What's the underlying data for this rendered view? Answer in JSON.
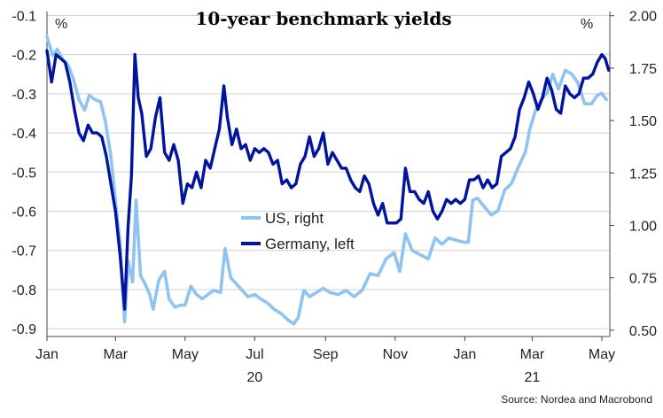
{
  "chart_data": {
    "type": "line",
    "title": "10-year benchmark yields",
    "left_unit": "%",
    "right_unit": "%",
    "source": "Source: Nordea and Macrobond",
    "x_range": [
      "2020-01-01",
      "2021-05-08"
    ],
    "x_ticks": [
      {
        "date": "2020-01-01",
        "label": "Jan"
      },
      {
        "date": "2020-03-01",
        "label": "Mar"
      },
      {
        "date": "2020-05-01",
        "label": "May"
      },
      {
        "date": "2020-07-01",
        "label": "Jul"
      },
      {
        "date": "2020-09-01",
        "label": "Sep"
      },
      {
        "date": "2020-11-01",
        "label": "Nov"
      },
      {
        "date": "2021-01-01",
        "label": "Jan"
      },
      {
        "date": "2021-03-01",
        "label": "Mar"
      },
      {
        "date": "2021-05-01",
        "label": "May"
      }
    ],
    "year_labels": [
      {
        "date": "2020-07-01",
        "label": "20"
      },
      {
        "date": "2021-03-01",
        "label": "21"
      }
    ],
    "left_axis": {
      "ylim": [
        -0.92,
        -0.09
      ],
      "ticks": [
        -0.1,
        -0.2,
        -0.3,
        -0.4,
        -0.5,
        -0.6,
        -0.7,
        -0.8,
        -0.9
      ],
      "tick_labels": [
        "-0.1",
        "-0.2",
        "-0.3",
        "-0.4",
        "-0.5",
        "-0.6",
        "-0.7",
        "-0.8",
        "-0.9"
      ]
    },
    "right_axis": {
      "ylim": [
        0.47,
        2.02
      ],
      "ticks": [
        2.0,
        1.75,
        1.5,
        1.25,
        1.0,
        0.75,
        0.5
      ],
      "tick_labels": [
        "2.00",
        "1.75",
        "1.50",
        "1.25",
        "1.00",
        "0.75",
        "0.50"
      ]
    },
    "grid": true,
    "legend_position": "center",
    "series": [
      {
        "name": "US, right",
        "axis": "right",
        "color": "#8fc3f2",
        "points": [
          [
            "2020-01-01",
            1.9
          ],
          [
            "2020-01-06",
            1.81
          ],
          [
            "2020-01-10",
            1.84
          ],
          [
            "2020-01-15",
            1.79
          ],
          [
            "2020-01-20",
            1.76
          ],
          [
            "2020-01-24",
            1.7
          ],
          [
            "2020-01-29",
            1.6
          ],
          [
            "2020-02-03",
            1.55
          ],
          [
            "2020-02-07",
            1.62
          ],
          [
            "2020-02-12",
            1.6
          ],
          [
            "2020-02-17",
            1.59
          ],
          [
            "2020-02-21",
            1.5
          ],
          [
            "2020-02-26",
            1.33
          ],
          [
            "2020-03-02",
            1.06
          ],
          [
            "2020-03-05",
            0.92
          ],
          [
            "2020-03-09",
            0.54
          ],
          [
            "2020-03-12",
            0.83
          ],
          [
            "2020-03-16",
            0.73
          ],
          [
            "2020-03-19",
            1.12
          ],
          [
            "2020-03-23",
            0.76
          ],
          [
            "2020-03-27",
            0.72
          ],
          [
            "2020-03-31",
            0.67
          ],
          [
            "2020-04-03",
            0.6
          ],
          [
            "2020-04-08",
            0.74
          ],
          [
            "2020-04-13",
            0.78
          ],
          [
            "2020-04-17",
            0.65
          ],
          [
            "2020-04-22",
            0.61
          ],
          [
            "2020-04-27",
            0.62
          ],
          [
            "2020-05-01",
            0.62
          ],
          [
            "2020-05-06",
            0.71
          ],
          [
            "2020-05-11",
            0.67
          ],
          [
            "2020-05-16",
            0.65
          ],
          [
            "2020-05-21",
            0.67
          ],
          [
            "2020-05-26",
            0.69
          ],
          [
            "2020-06-01",
            0.68
          ],
          [
            "2020-06-05",
            0.89
          ],
          [
            "2020-06-10",
            0.75
          ],
          [
            "2020-06-15",
            0.72
          ],
          [
            "2020-06-20",
            0.69
          ],
          [
            "2020-06-25",
            0.66
          ],
          [
            "2020-07-01",
            0.67
          ],
          [
            "2020-07-06",
            0.65
          ],
          [
            "2020-07-12",
            0.63
          ],
          [
            "2020-07-18",
            0.6
          ],
          [
            "2020-07-24",
            0.58
          ],
          [
            "2020-07-30",
            0.55
          ],
          [
            "2020-08-04",
            0.53
          ],
          [
            "2020-08-08",
            0.56
          ],
          [
            "2020-08-13",
            0.69
          ],
          [
            "2020-08-18",
            0.66
          ],
          [
            "2020-08-24",
            0.68
          ],
          [
            "2020-08-30",
            0.7
          ],
          [
            "2020-09-05",
            0.68
          ],
          [
            "2020-09-12",
            0.67
          ],
          [
            "2020-09-19",
            0.69
          ],
          [
            "2020-09-26",
            0.66
          ],
          [
            "2020-10-03",
            0.69
          ],
          [
            "2020-10-10",
            0.77
          ],
          [
            "2020-10-17",
            0.76
          ],
          [
            "2020-10-24",
            0.84
          ],
          [
            "2020-10-31",
            0.87
          ],
          [
            "2020-11-05",
            0.78
          ],
          [
            "2020-11-10",
            0.96
          ],
          [
            "2020-11-16",
            0.88
          ],
          [
            "2020-11-23",
            0.86
          ],
          [
            "2020-11-30",
            0.84
          ],
          [
            "2020-12-06",
            0.94
          ],
          [
            "2020-12-12",
            0.91
          ],
          [
            "2020-12-18",
            0.94
          ],
          [
            "2020-12-24",
            0.93
          ],
          [
            "2020-12-31",
            0.92
          ],
          [
            "2021-01-04",
            0.92
          ],
          [
            "2021-01-08",
            1.12
          ],
          [
            "2021-01-12",
            1.13
          ],
          [
            "2021-01-18",
            1.09
          ],
          [
            "2021-01-24",
            1.05
          ],
          [
            "2021-01-30",
            1.07
          ],
          [
            "2021-02-05",
            1.17
          ],
          [
            "2021-02-11",
            1.2
          ],
          [
            "2021-02-17",
            1.28
          ],
          [
            "2021-02-23",
            1.35
          ],
          [
            "2021-02-27",
            1.46
          ],
          [
            "2021-03-04",
            1.55
          ],
          [
            "2021-03-09",
            1.6
          ],
          [
            "2021-03-14",
            1.63
          ],
          [
            "2021-03-19",
            1.72
          ],
          [
            "2021-03-24",
            1.65
          ],
          [
            "2021-03-30",
            1.74
          ],
          [
            "2021-04-05",
            1.72
          ],
          [
            "2021-04-10",
            1.68
          ],
          [
            "2021-04-16",
            1.58
          ],
          [
            "2021-04-22",
            1.58
          ],
          [
            "2021-04-27",
            1.62
          ],
          [
            "2021-05-01",
            1.63
          ],
          [
            "2021-05-05",
            1.6
          ]
        ]
      },
      {
        "name": "Germany, left",
        "axis": "left",
        "color": "#00149e",
        "points": [
          [
            "2020-01-01",
            -0.19
          ],
          [
            "2020-01-05",
            -0.27
          ],
          [
            "2020-01-09",
            -0.2
          ],
          [
            "2020-01-13",
            -0.21
          ],
          [
            "2020-01-17",
            -0.22
          ],
          [
            "2020-01-21",
            -0.27
          ],
          [
            "2020-01-25",
            -0.34
          ],
          [
            "2020-01-29",
            -0.4
          ],
          [
            "2020-02-02",
            -0.42
          ],
          [
            "2020-02-06",
            -0.38
          ],
          [
            "2020-02-10",
            -0.4
          ],
          [
            "2020-02-14",
            -0.4
          ],
          [
            "2020-02-18",
            -0.41
          ],
          [
            "2020-02-22",
            -0.46
          ],
          [
            "2020-02-26",
            -0.53
          ],
          [
            "2020-03-01",
            -0.6
          ],
          [
            "2020-03-05",
            -0.71
          ],
          [
            "2020-03-09",
            -0.85
          ],
          [
            "2020-03-12",
            -0.64
          ],
          [
            "2020-03-15",
            -0.51
          ],
          [
            "2020-03-18",
            -0.2
          ],
          [
            "2020-03-21",
            -0.31
          ],
          [
            "2020-03-24",
            -0.35
          ],
          [
            "2020-03-28",
            -0.46
          ],
          [
            "2020-04-01",
            -0.44
          ],
          [
            "2020-04-05",
            -0.36
          ],
          [
            "2020-04-09",
            -0.31
          ],
          [
            "2020-04-13",
            -0.45
          ],
          [
            "2020-04-17",
            -0.47
          ],
          [
            "2020-04-21",
            -0.43
          ],
          [
            "2020-04-25",
            -0.47
          ],
          [
            "2020-04-29",
            -0.58
          ],
          [
            "2020-05-03",
            -0.53
          ],
          [
            "2020-05-07",
            -0.54
          ],
          [
            "2020-05-11",
            -0.5
          ],
          [
            "2020-05-15",
            -0.54
          ],
          [
            "2020-05-19",
            -0.47
          ],
          [
            "2020-05-23",
            -0.49
          ],
          [
            "2020-05-27",
            -0.44
          ],
          [
            "2020-05-31",
            -0.39
          ],
          [
            "2020-06-04",
            -0.28
          ],
          [
            "2020-06-07",
            -0.36
          ],
          [
            "2020-06-11",
            -0.43
          ],
          [
            "2020-06-15",
            -0.39
          ],
          [
            "2020-06-19",
            -0.44
          ],
          [
            "2020-06-23",
            -0.43
          ],
          [
            "2020-06-27",
            -0.47
          ],
          [
            "2020-07-01",
            -0.44
          ],
          [
            "2020-07-05",
            -0.45
          ],
          [
            "2020-07-09",
            -0.44
          ],
          [
            "2020-07-13",
            -0.45
          ],
          [
            "2020-07-17",
            -0.48
          ],
          [
            "2020-07-21",
            -0.47
          ],
          [
            "2020-07-25",
            -0.53
          ],
          [
            "2020-07-29",
            -0.52
          ],
          [
            "2020-08-02",
            -0.54
          ],
          [
            "2020-08-06",
            -0.53
          ],
          [
            "2020-08-10",
            -0.48
          ],
          [
            "2020-08-14",
            -0.46
          ],
          [
            "2020-08-18",
            -0.41
          ],
          [
            "2020-08-22",
            -0.46
          ],
          [
            "2020-08-26",
            -0.44
          ],
          [
            "2020-08-30",
            -0.4
          ],
          [
            "2020-09-03",
            -0.48
          ],
          [
            "2020-09-07",
            -0.45
          ],
          [
            "2020-09-11",
            -0.47
          ],
          [
            "2020-09-15",
            -0.49
          ],
          [
            "2020-09-19",
            -0.49
          ],
          [
            "2020-09-23",
            -0.52
          ],
          [
            "2020-09-27",
            -0.54
          ],
          [
            "2020-10-01",
            -0.55
          ],
          [
            "2020-10-05",
            -0.51
          ],
          [
            "2020-10-09",
            -0.53
          ],
          [
            "2020-10-13",
            -0.58
          ],
          [
            "2020-10-17",
            -0.61
          ],
          [
            "2020-10-21",
            -0.58
          ],
          [
            "2020-10-25",
            -0.63
          ],
          [
            "2020-10-29",
            -0.63
          ],
          [
            "2020-11-02",
            -0.63
          ],
          [
            "2020-11-06",
            -0.62
          ],
          [
            "2020-11-10",
            -0.49
          ],
          [
            "2020-11-14",
            -0.55
          ],
          [
            "2020-11-18",
            -0.55
          ],
          [
            "2020-11-22",
            -0.57
          ],
          [
            "2020-11-26",
            -0.58
          ],
          [
            "2020-11-30",
            -0.55
          ],
          [
            "2020-12-04",
            -0.6
          ],
          [
            "2020-12-08",
            -0.62
          ],
          [
            "2020-12-12",
            -0.6
          ],
          [
            "2020-12-16",
            -0.57
          ],
          [
            "2020-12-20",
            -0.58
          ],
          [
            "2020-12-24",
            -0.57
          ],
          [
            "2020-12-28",
            -0.58
          ],
          [
            "2021-01-01",
            -0.57
          ],
          [
            "2021-01-05",
            -0.52
          ],
          [
            "2021-01-09",
            -0.52
          ],
          [
            "2021-01-13",
            -0.51
          ],
          [
            "2021-01-17",
            -0.54
          ],
          [
            "2021-01-21",
            -0.52
          ],
          [
            "2021-01-25",
            -0.54
          ],
          [
            "2021-01-29",
            -0.53
          ],
          [
            "2021-02-02",
            -0.46
          ],
          [
            "2021-02-06",
            -0.45
          ],
          [
            "2021-02-10",
            -0.44
          ],
          [
            "2021-02-14",
            -0.41
          ],
          [
            "2021-02-18",
            -0.34
          ],
          [
            "2021-02-22",
            -0.31
          ],
          [
            "2021-02-26",
            -0.27
          ],
          [
            "2021-03-02",
            -0.3
          ],
          [
            "2021-03-06",
            -0.34
          ],
          [
            "2021-03-10",
            -0.31
          ],
          [
            "2021-03-14",
            -0.26
          ],
          [
            "2021-03-18",
            -0.29
          ],
          [
            "2021-03-22",
            -0.34
          ],
          [
            "2021-03-26",
            -0.35
          ],
          [
            "2021-03-30",
            -0.28
          ],
          [
            "2021-04-03",
            -0.3
          ],
          [
            "2021-04-07",
            -0.31
          ],
          [
            "2021-04-11",
            -0.3
          ],
          [
            "2021-04-15",
            -0.26
          ],
          [
            "2021-04-19",
            -0.26
          ],
          [
            "2021-04-23",
            -0.25
          ],
          [
            "2021-04-27",
            -0.22
          ],
          [
            "2021-05-01",
            -0.2
          ],
          [
            "2021-05-04",
            -0.21
          ],
          [
            "2021-05-07",
            -0.24
          ]
        ]
      }
    ]
  }
}
